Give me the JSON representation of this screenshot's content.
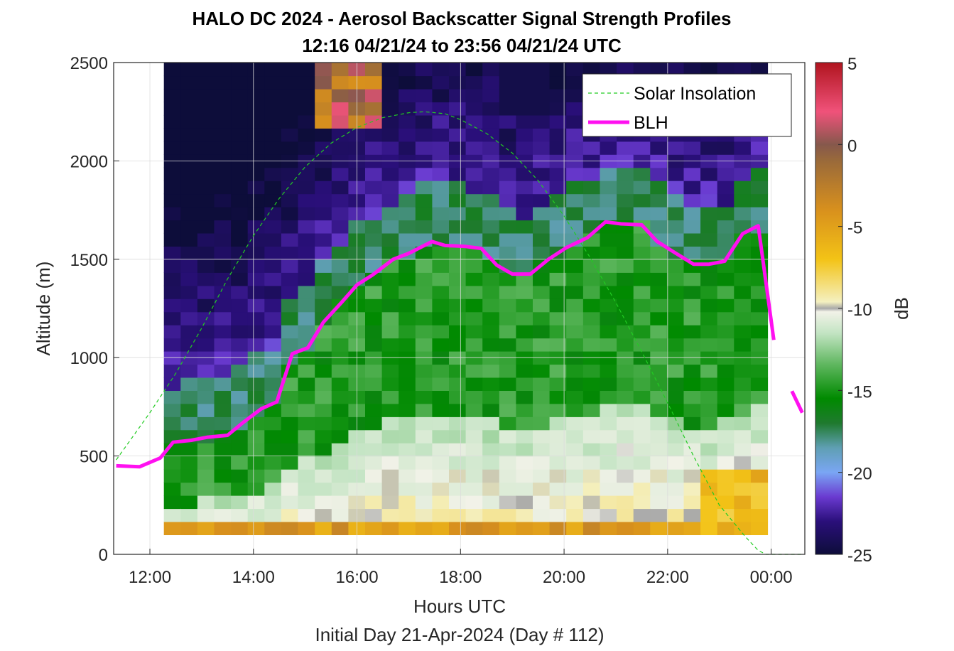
{
  "chart_data": {
    "type": "heatmap",
    "title": "HALO DC 2024 - Aerosol Backscatter Signal Strength Profiles",
    "subtitle": "12:16 04/21/24 to 23:56 04/21/24  UTC",
    "xlabel": "Hours UTC",
    "xlabel2": "Initial Day 21-Apr-2024 (Day # 112)",
    "ylabel": "Altitude (m)",
    "colorbar_label": "dB",
    "xlim_hours": [
      11.3,
      24.65
    ],
    "ylim": [
      0,
      2500
    ],
    "x_ticks": [
      {
        "value": 12,
        "label": "12:00"
      },
      {
        "value": 14,
        "label": "14:00"
      },
      {
        "value": 16,
        "label": "16:00"
      },
      {
        "value": 18,
        "label": "18:00"
      },
      {
        "value": 20,
        "label": "20:00"
      },
      {
        "value": 22,
        "label": "22:00"
      },
      {
        "value": 24,
        "label": "00:00"
      }
    ],
    "y_ticks": [
      0,
      500,
      1000,
      1500,
      2000,
      2500
    ],
    "colorbar": {
      "range": [
        -25,
        5
      ],
      "ticks": [
        5,
        0,
        -5,
        -10,
        -15,
        -20,
        -25
      ],
      "colors": [
        {
          "db": -25,
          "color": "#0d0d3a"
        },
        {
          "db": -23,
          "color": "#2a0f7a"
        },
        {
          "db": -21.5,
          "color": "#6a3ad0"
        },
        {
          "db": -20,
          "color": "#7aa6f4"
        },
        {
          "db": -18.5,
          "color": "#5f9fb3"
        },
        {
          "db": -17,
          "color": "#1f7a2e"
        },
        {
          "db": -15.5,
          "color": "#008a00"
        },
        {
          "db": -13.5,
          "color": "#5bb55b"
        },
        {
          "db": -11.5,
          "color": "#c3e4c3"
        },
        {
          "db": -10.2,
          "color": "#f2f2e8"
        },
        {
          "db": -10,
          "color": "#a8a8a8"
        },
        {
          "db": -9.6,
          "color": "#f4f0c0"
        },
        {
          "db": -7,
          "color": "#f3c316"
        },
        {
          "db": -4,
          "color": "#d8901d"
        },
        {
          "db": -1,
          "color": "#9a6a3a"
        },
        {
          "db": 0,
          "color": "#86584c"
        },
        {
          "db": 2,
          "color": "#f0527a"
        },
        {
          "db": 5,
          "color": "#b0141e"
        }
      ]
    },
    "heatmap": {
      "time_range_hours": [
        12.27,
        23.93
      ],
      "altitude_range_m": [
        100,
        2500
      ],
      "n_time_bins": 36,
      "n_alt_bins": 36
    },
    "series": [
      {
        "name": "Solar Insolation",
        "style": "dashed",
        "color": "#22cc22",
        "x": [
          11.35,
          12.0,
          12.5,
          13.0,
          13.5,
          14.0,
          14.5,
          15.0,
          15.5,
          16.0,
          16.5,
          17.0,
          17.3,
          17.7,
          18.0,
          18.5,
          19.0,
          19.5,
          20.0,
          20.5,
          21.0,
          21.5,
          22.0,
          22.5,
          23.0,
          23.5,
          23.75,
          23.9,
          24.6
        ],
        "y": [
          480,
          720,
          920,
          1150,
          1400,
          1620,
          1810,
          1970,
          2090,
          2170,
          2220,
          2245,
          2250,
          2240,
          2210,
          2140,
          2040,
          1900,
          1720,
          1510,
          1280,
          1030,
          770,
          500,
          250,
          90,
          20,
          0,
          0
        ]
      },
      {
        "name": "BLH",
        "style": "solid",
        "color": "#ff10f0",
        "x": [
          11.35,
          11.8,
          12.2,
          12.45,
          12.8,
          13.1,
          13.5,
          13.8,
          14.15,
          14.45,
          14.75,
          15.05,
          15.35,
          15.7,
          16.0,
          16.3,
          16.7,
          17.0,
          17.45,
          17.7,
          18.1,
          18.4,
          18.7,
          19.0,
          19.35,
          19.7,
          20.05,
          20.45,
          20.8,
          21.1,
          21.5,
          21.8,
          22.1,
          22.5,
          22.8,
          23.1,
          23.45,
          23.75,
          24.05
        ],
        "y": [
          450,
          445,
          490,
          570,
          580,
          595,
          605,
          670,
          740,
          775,
          1020,
          1050,
          1180,
          1280,
          1370,
          1420,
          1500,
          1530,
          1590,
          1570,
          1565,
          1555,
          1470,
          1425,
          1425,
          1500,
          1560,
          1610,
          1690,
          1680,
          1675,
          1590,
          1540,
          1475,
          1475,
          1490,
          1630,
          1670,
          1090
        ],
        "segment2": {
          "x": [
            24.4,
            24.6
          ],
          "y": [
            830,
            720
          ]
        }
      }
    ],
    "legend": {
      "placement": "top-right",
      "entries": [
        "Solar Insolation",
        "BLH"
      ]
    }
  }
}
